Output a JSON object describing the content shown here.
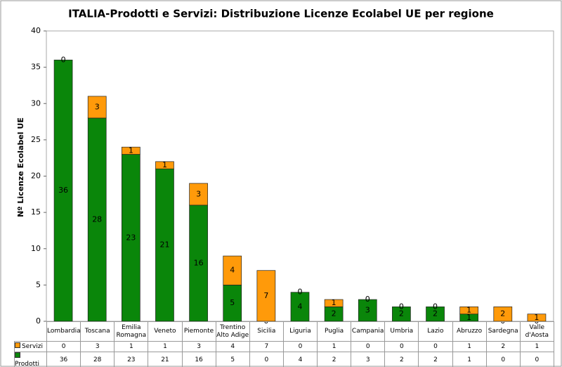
{
  "chart_data": {
    "type": "stacked_bar",
    "title": "ITALIA-Prodotti e Servizi: Distribuzione Licenze Ecolabel UE per regione",
    "y_label": "Nº Licenze Ecolabel UE",
    "categories": [
      "Lombardia",
      "Toscana",
      "Emilia Romagna",
      "Veneto",
      "Piemonte",
      "Trentino Alto Adige",
      "Sicilia",
      "Liguria",
      "Puglia",
      "Campania",
      "Umbria",
      "Lazio",
      "Abruzzo",
      "Sardegna",
      "Valle d'Aosta"
    ],
    "series": [
      {
        "name": "Prodotti",
        "color": "#0a860a",
        "values": [
          36,
          28,
          23,
          21,
          16,
          5,
          0,
          4,
          2,
          3,
          2,
          2,
          1,
          0,
          0
        ]
      },
      {
        "name": "Servizi",
        "color": "#ff9a0a",
        "values": [
          0,
          3,
          1,
          1,
          3,
          4,
          7,
          0,
          1,
          0,
          0,
          0,
          1,
          2,
          1
        ]
      }
    ],
    "ylim": [
      0,
      40
    ],
    "yticks": [
      0,
      5,
      10,
      15,
      20,
      25,
      30,
      35,
      40
    ],
    "grid": false
  }
}
